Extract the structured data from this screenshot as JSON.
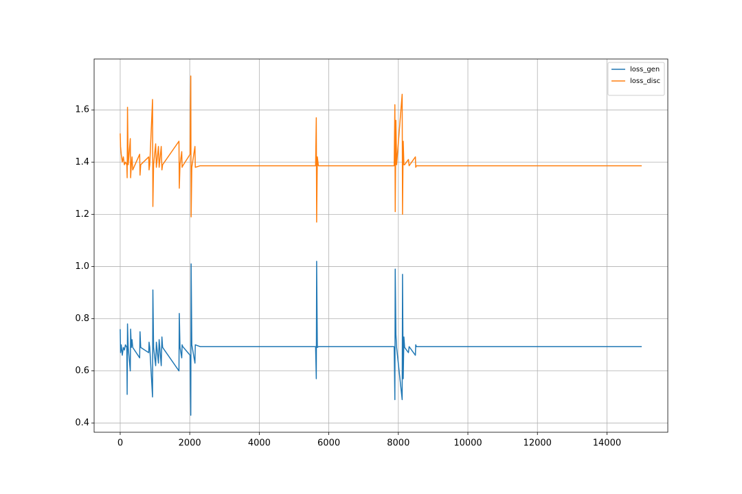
{
  "chart_data": {
    "type": "line",
    "x": [
      0,
      10,
      30,
      60,
      90,
      120,
      150,
      190,
      200,
      210,
      230,
      290,
      300,
      320,
      340,
      360,
      560,
      570,
      590,
      820,
      830,
      850,
      930,
      940,
      960,
      1020,
      1040,
      1100,
      1120,
      1180,
      1200,
      1220,
      1690,
      1700,
      1720,
      1770,
      1780,
      1800,
      2010,
      2030,
      2040,
      2060,
      2150,
      2160,
      2300,
      5620,
      5640,
      5650,
      5670,
      5700,
      7880,
      7900,
      7910,
      7930,
      7950,
      8110,
      8120,
      8140,
      8160,
      8180,
      8290,
      8310,
      8490,
      8500,
      8520,
      15000
    ],
    "series": [
      {
        "name": "loss_gen",
        "color": "#1f77b4",
        "values": [
          0.76,
          0.67,
          0.7,
          0.66,
          0.69,
          0.68,
          0.7,
          0.69,
          0.51,
          0.78,
          0.69,
          0.6,
          0.76,
          0.69,
          0.72,
          0.69,
          0.65,
          0.75,
          0.69,
          0.67,
          0.71,
          0.69,
          0.5,
          0.91,
          0.69,
          0.62,
          0.71,
          0.63,
          0.72,
          0.62,
          0.73,
          0.69,
          0.6,
          0.82,
          0.69,
          0.65,
          0.7,
          0.693,
          0.66,
          0.43,
          1.01,
          0.7,
          0.63,
          0.7,
          0.693,
          0.693,
          0.57,
          1.02,
          0.69,
          0.693,
          0.693,
          0.49,
          0.99,
          0.74,
          0.69,
          0.49,
          0.97,
          0.57,
          0.73,
          0.69,
          0.67,
          0.693,
          0.66,
          0.7,
          0.693,
          0.693
        ]
      },
      {
        "name": "loss_disc",
        "color": "#ff7f0e",
        "values": [
          1.51,
          1.46,
          1.43,
          1.4,
          1.42,
          1.39,
          1.4,
          1.39,
          1.34,
          1.61,
          1.39,
          1.49,
          1.34,
          1.39,
          1.42,
          1.37,
          1.43,
          1.35,
          1.39,
          1.42,
          1.37,
          1.39,
          1.64,
          1.23,
          1.39,
          1.47,
          1.38,
          1.46,
          1.38,
          1.46,
          1.37,
          1.39,
          1.48,
          1.3,
          1.39,
          1.44,
          1.38,
          1.386,
          1.43,
          1.73,
          1.19,
          1.38,
          1.46,
          1.38,
          1.386,
          1.386,
          1.57,
          1.17,
          1.42,
          1.386,
          1.386,
          1.62,
          1.21,
          1.56,
          1.39,
          1.66,
          1.2,
          1.48,
          1.39,
          1.39,
          1.41,
          1.386,
          1.42,
          1.38,
          1.386,
          1.386
        ]
      }
    ],
    "xlim": [
      -750,
      15750
    ],
    "xticks": [
      0,
      2000,
      4000,
      6000,
      8000,
      10000,
      12000,
      14000
    ],
    "ylim": [
      0.365,
      1.795
    ],
    "yticks": [
      0.4,
      0.6,
      0.8,
      {
        "value": 1,
        "label": "1.0"
      },
      1.2,
      1.4,
      1.6
    ],
    "grid": true,
    "legend": "upper right"
  }
}
